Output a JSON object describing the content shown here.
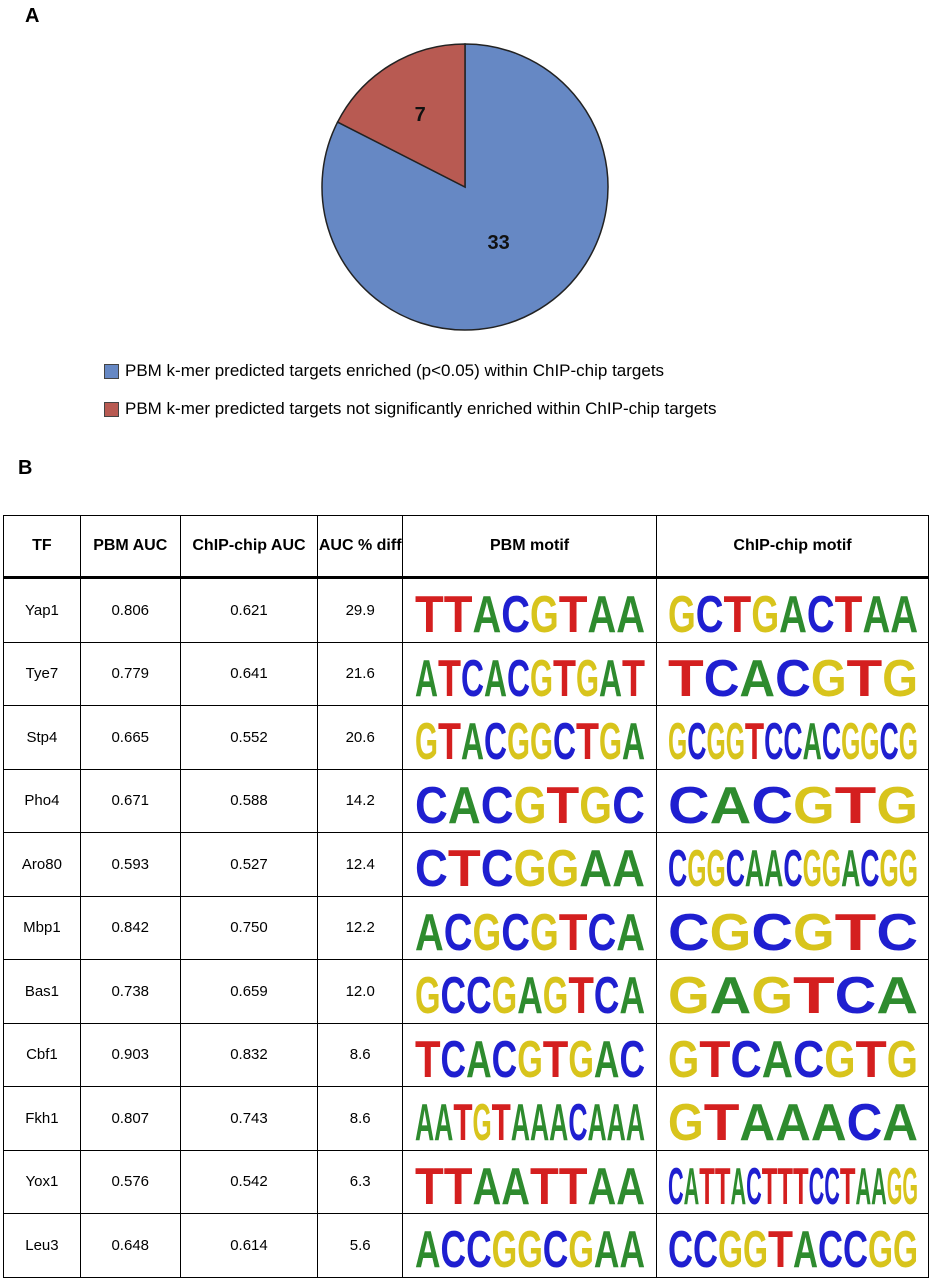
{
  "panel_a": {
    "label": "A",
    "chart_data": {
      "type": "pie",
      "categories": [
        "PBM k-mer predicted targets enriched (p<0.05) within ChIP-chip targets",
        "PBM k-mer predicted targets not significantly enriched within ChIP-chip targets"
      ],
      "values": [
        33,
        7
      ],
      "colors": [
        "#6688c4",
        "#b85a52"
      ]
    }
  },
  "panel_b": {
    "label": "B",
    "table": {
      "headers": [
        "TF",
        "PBM AUC",
        "ChIP-chip AUC",
        "AUC % diff",
        "PBM motif",
        "ChIP-chip motif"
      ],
      "rows": [
        [
          "Yap1",
          "0.806",
          "0.621",
          "29.9",
          [
            "T",
            "T",
            "A",
            "C",
            "G",
            "T",
            "A",
            "A"
          ],
          [
            "G",
            "C",
            "T",
            "G",
            "A",
            "C",
            "T",
            "A",
            "A"
          ]
        ],
        [
          "Tye7",
          "0.779",
          "0.641",
          "21.6",
          [
            "A",
            "T",
            "C",
            "A",
            "C",
            "G",
            "T",
            "G",
            "A",
            "T"
          ],
          [
            "T",
            "C",
            "A",
            "C",
            "G",
            "T",
            "G"
          ]
        ],
        [
          "Stp4",
          "0.665",
          "0.552",
          "20.6",
          [
            "G",
            "T",
            "A",
            "C",
            "G",
            "G",
            "C",
            "T",
            "G",
            "A"
          ],
          [
            "G",
            "C",
            "G",
            "G",
            "T",
            "C",
            "C",
            "A",
            "C",
            "G",
            "G",
            "C",
            "G"
          ]
        ],
        [
          "Pho4",
          "0.671",
          "0.588",
          "14.2",
          [
            "C",
            "A",
            "C",
            "G",
            "T",
            "G",
            "C"
          ],
          [
            "C",
            "A",
            "C",
            "G",
            "T",
            "G"
          ]
        ],
        [
          "Aro80",
          "0.593",
          "0.527",
          "12.4",
          [
            "C",
            "T",
            "C",
            "G",
            "G",
            "A",
            "A"
          ],
          [
            "C",
            "G",
            "G",
            "C",
            "A",
            "A",
            "C",
            "G",
            "G",
            "A",
            "C",
            "G",
            "G"
          ]
        ],
        [
          "Mbp1",
          "0.842",
          "0.750",
          "12.2",
          [
            "A",
            "C",
            "G",
            "C",
            "G",
            "T",
            "C",
            "A"
          ],
          [
            "C",
            "G",
            "C",
            "G",
            "T",
            "C"
          ]
        ],
        [
          "Bas1",
          "0.738",
          "0.659",
          "12.0",
          [
            "G",
            "C",
            "C",
            "G",
            "A",
            "G",
            "T",
            "C",
            "A"
          ],
          [
            "G",
            "A",
            "G",
            "T",
            "C",
            "A"
          ]
        ],
        [
          "Cbf1",
          "0.903",
          "0.832",
          "8.6",
          [
            "T",
            "C",
            "A",
            "C",
            "G",
            "T",
            "G",
            "A",
            "C"
          ],
          [
            "G",
            "T",
            "C",
            "A",
            "C",
            "G",
            "T",
            "G"
          ]
        ],
        [
          "Fkh1",
          "0.807",
          "0.743",
          "8.6",
          [
            "A",
            "A",
            "T",
            "G",
            "T",
            "A",
            "A",
            "A",
            "C",
            "A",
            "A",
            "A"
          ],
          [
            "G",
            "T",
            "A",
            "A",
            "A",
            "C",
            "A"
          ]
        ],
        [
          "Yox1",
          "0.576",
          "0.542",
          "6.3",
          [
            "T",
            "T",
            "A",
            "A",
            "T",
            "T",
            "A",
            "A"
          ],
          [
            "C",
            "A",
            "T",
            "T",
            "A",
            "C",
            "T",
            "T",
            "T",
            "C",
            "C",
            "T",
            "A",
            "A",
            "G",
            "G"
          ]
        ],
        [
          "Leu3",
          "0.648",
          "0.614",
          "5.6",
          [
            "A",
            "C",
            "C",
            "G",
            "G",
            "C",
            "G",
            "A",
            "A"
          ],
          [
            "C",
            "C",
            "G",
            "G",
            "T",
            "A",
            "C",
            "C",
            "G",
            "G"
          ]
        ]
      ]
    }
  }
}
